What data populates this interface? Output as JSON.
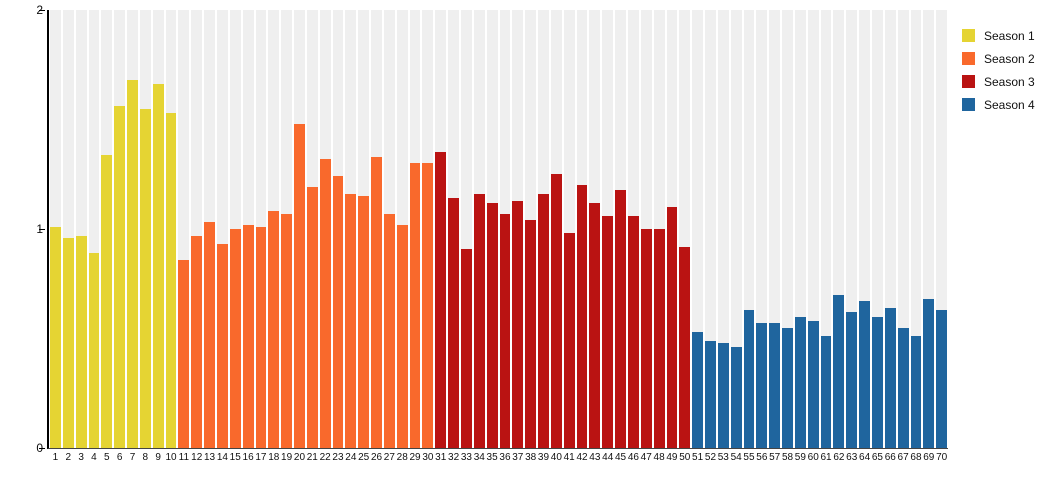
{
  "chart_data": {
    "type": "bar",
    "title": "",
    "xlabel": "",
    "ylabel": "",
    "ylim": [
      0,
      2
    ],
    "yticks": [
      "0",
      "1",
      "2"
    ],
    "grid": "vertical-stripes",
    "stripe_color": "#efefef",
    "legend_position": "top-right",
    "categories": [
      "1",
      "2",
      "3",
      "4",
      "5",
      "6",
      "7",
      "8",
      "9",
      "10",
      "11",
      "12",
      "13",
      "14",
      "15",
      "16",
      "17",
      "18",
      "19",
      "20",
      "21",
      "22",
      "23",
      "24",
      "25",
      "26",
      "27",
      "28",
      "29",
      "30",
      "31",
      "32",
      "33",
      "34",
      "35",
      "36",
      "37",
      "38",
      "39",
      "40",
      "41",
      "42",
      "43",
      "44",
      "45",
      "46",
      "47",
      "48",
      "49",
      "50",
      "51",
      "52",
      "53",
      "54",
      "55",
      "56",
      "57",
      "58",
      "59",
      "60",
      "61",
      "62",
      "63",
      "64",
      "65",
      "66",
      "67",
      "68",
      "69",
      "70"
    ],
    "series": [
      {
        "name": "Season 1",
        "color": "#e5d433",
        "start_category": "1",
        "values": [
          1.01,
          0.96,
          0.97,
          0.89,
          1.34,
          1.56,
          1.68,
          1.55,
          1.66,
          1.53
        ]
      },
      {
        "name": "Season 2",
        "color": "#f9692c",
        "start_category": "11",
        "values": [
          0.86,
          0.97,
          1.03,
          0.93,
          1.0,
          1.02,
          1.01,
          1.08,
          1.07,
          1.48,
          1.19,
          1.32,
          1.24,
          1.16,
          1.15,
          1.33,
          1.07,
          1.02,
          1.3,
          1.3
        ]
      },
      {
        "name": "Season 3",
        "color": "#ba1312",
        "start_category": "31",
        "values": [
          1.35,
          1.14,
          0.91,
          1.16,
          1.12,
          1.07,
          1.13,
          1.04,
          1.16,
          1.25,
          0.98,
          1.2,
          1.12,
          1.06,
          1.18,
          1.06,
          1.0,
          1.0,
          1.1,
          0.92
        ]
      },
      {
        "name": "Season 4",
        "color": "#1f659e",
        "start_category": "51",
        "values": [
          0.53,
          0.49,
          0.48,
          0.46,
          0.63,
          0.57,
          0.57,
          0.55,
          0.6,
          0.58,
          0.51,
          0.7,
          0.62,
          0.67,
          0.6,
          0.64,
          0.55,
          0.51,
          0.68,
          0.63
        ]
      }
    ]
  }
}
